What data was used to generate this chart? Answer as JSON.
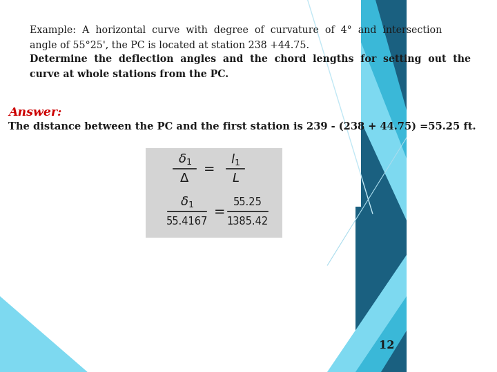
{
  "bg_color": "#ffffff",
  "line1": "Example:  A  horizontal  curve  with  degree  of  curvature  of  4°  and  intersection",
  "line2": "angle of 55°25', the PC is located at station 238 +44.75.",
  "line3": "Determine  the  deflection  angles  and  the  chord  lengths  for  setting  out  the",
  "line4": "curve at whole stations from the PC.",
  "answer_label": "Answer:",
  "answer_text": "The distance between the PC and the first station is 239 - (238 + 44.75) =55.25 ft.",
  "formula2_denom": "55.4167",
  "formula2_rnum": "55.25",
  "formula2_rdenom": "1385.42",
  "page_number": "12",
  "text_color": "#1a1a1a",
  "answer_color": "#cc0000",
  "formula_box_color": "#d4d4d4",
  "col_light": "#7dd9f0",
  "col_mid": "#3bb8dc",
  "col_dark": "#1a6e90",
  "col_darkest": "#1a5570"
}
